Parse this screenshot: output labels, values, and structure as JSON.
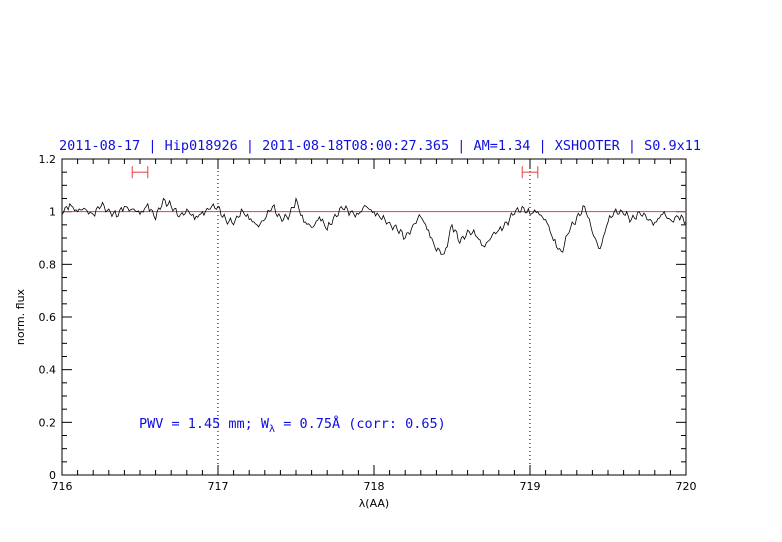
{
  "chart_data": {
    "type": "line",
    "title": "2011-08-17 | Hip018926 | 2011-08-18T08:00:27.365 | AM=1.34 | XSHOOTER | S0.9x11",
    "xlabel": "λ(AA)",
    "ylabel": "norm. flux",
    "xlim": [
      716,
      720
    ],
    "ylim": [
      0,
      1.2
    ],
    "x_ticks": [
      716,
      717,
      718,
      719,
      720
    ],
    "x_tick_labels": [
      "716",
      "717",
      "718",
      "719",
      "720"
    ],
    "y_ticks": [
      0,
      0.2,
      0.4,
      0.6,
      0.8,
      1,
      1.2
    ],
    "y_tick_labels": [
      "0",
      "0.2",
      "0.4",
      "0.6",
      "0.8",
      "1",
      "1.2"
    ],
    "reference_line": {
      "y": 1.0,
      "color": "#e04040"
    },
    "vertical_markers": [
      717.0,
      719.0
    ],
    "ranges": [
      {
        "x": [
          716.45,
          716.55
        ],
        "y": 1.15,
        "color": "#e04040"
      },
      {
        "x": [
          718.95,
          719.05
        ],
        "y": 1.15,
        "color": "#e04040"
      }
    ],
    "annotation": {
      "prefix": "PWV = 1.45 mm; W",
      "subscript": "λ",
      "suffix": " = 0.75Å (corr: 0.65)"
    },
    "series": [
      {
        "color": "#000000",
        "x": [
          716.0,
          716.05,
          716.1,
          716.15,
          716.2,
          716.25,
          716.3,
          716.35,
          716.4,
          716.45,
          716.5,
          716.55,
          716.6,
          716.65,
          716.7,
          716.75,
          716.8,
          716.85,
          716.9,
          716.95,
          717.0,
          717.05,
          717.1,
          717.15,
          717.2,
          717.25,
          717.3,
          717.35,
          717.4,
          717.45,
          717.5,
          717.55,
          717.6,
          717.65,
          717.7,
          717.75,
          717.8,
          717.85,
          717.9,
          717.95,
          718.0,
          718.05,
          718.1,
          718.15,
          718.2,
          718.25,
          718.3,
          718.35,
          718.4,
          718.45,
          718.5,
          718.55,
          718.6,
          718.65,
          718.7,
          718.75,
          718.8,
          718.85,
          718.9,
          718.95,
          719.0,
          719.05,
          719.1,
          719.15,
          719.2,
          719.25,
          719.3,
          719.35,
          719.4,
          719.45,
          719.5,
          719.55,
          719.6,
          719.65,
          719.7,
          719.75,
          719.8,
          719.85,
          719.9,
          719.95,
          720.0
        ],
        "y": [
          0.99,
          1.03,
          1.0,
          1.01,
          0.99,
          1.02,
          1.01,
          0.98,
          1.02,
          1.01,
          0.99,
          1.03,
          0.97,
          1.05,
          1.02,
          0.98,
          1.01,
          0.97,
          1.0,
          1.01,
          1.02,
          0.97,
          0.95,
          1.01,
          0.97,
          0.95,
          0.97,
          1.02,
          0.98,
          0.97,
          1.05,
          0.96,
          0.94,
          0.98,
          0.93,
          0.99,
          1.01,
          1.0,
          0.99,
          1.02,
          1.0,
          0.97,
          0.96,
          0.93,
          0.9,
          0.95,
          0.98,
          0.93,
          0.85,
          0.84,
          0.95,
          0.88,
          0.93,
          0.91,
          0.87,
          0.9,
          0.93,
          0.96,
          0.99,
          1.02,
          0.99,
          1.0,
          0.97,
          0.89,
          0.85,
          0.92,
          0.98,
          1.02,
          0.92,
          0.86,
          0.96,
          1.01,
          0.99,
          0.97,
          1.0,
          0.97,
          0.96,
          0.99,
          0.97,
          0.98,
          0.96
        ]
      }
    ]
  }
}
